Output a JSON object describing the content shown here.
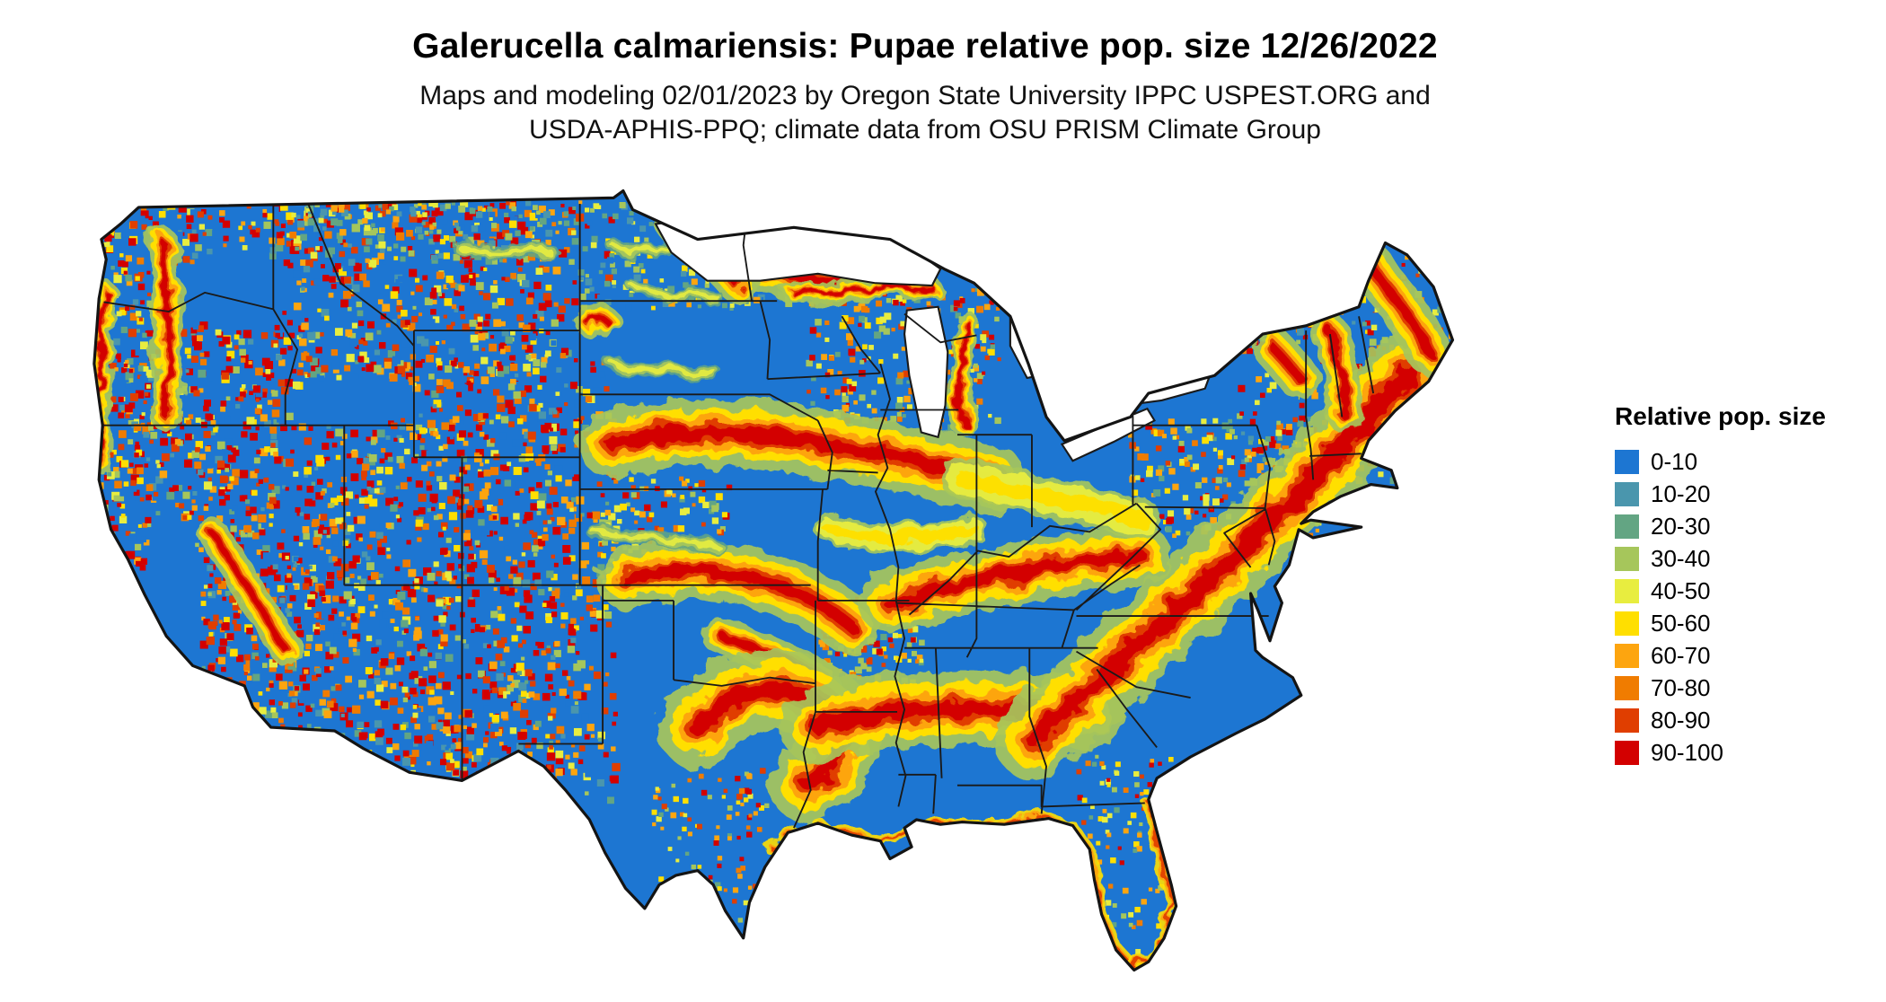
{
  "title": "Galerucella calmariensis: Pupae relative pop. size 12/26/2022",
  "subtitle": [
    "Maps and modeling 02/01/2023 by Oregon State University IPPC USPEST.ORG and",
    "USDA-APHIS-PPQ; climate data from OSU PRISM Climate Group"
  ],
  "legend": {
    "title": "Relative pop. size",
    "items": [
      {
        "label": "0-10",
        "color": "#1d76d2"
      },
      {
        "label": "10-20",
        "color": "#4a96ad"
      },
      {
        "label": "20-30",
        "color": "#63a583"
      },
      {
        "label": "30-40",
        "color": "#a6c65b"
      },
      {
        "label": "40-50",
        "color": "#e8ed3f"
      },
      {
        "label": "50-60",
        "color": "#ffdf00"
      },
      {
        "label": "60-70",
        "color": "#fda50f"
      },
      {
        "label": "70-80",
        "color": "#f07c00"
      },
      {
        "label": "80-90",
        "color": "#e03e00"
      },
      {
        "label": "90-100",
        "color": "#d30000"
      }
    ]
  },
  "chart_data": {
    "type": "heatmap",
    "title": "Galerucella calmariensis: Pupae relative pop. size 12/26/2022",
    "legend_title": "Relative pop. size",
    "bins": [
      "0-10",
      "10-20",
      "20-30",
      "30-40",
      "40-50",
      "50-60",
      "60-70",
      "70-80",
      "80-90",
      "90-100"
    ],
    "bin_colors": [
      "#1d76d2",
      "#4a96ad",
      "#63a583",
      "#a6c65b",
      "#e8ed3f",
      "#ffdf00",
      "#fda50f",
      "#f07c00",
      "#e03e00",
      "#d30000"
    ],
    "region": "Continental United States",
    "legend_position": "right"
  }
}
